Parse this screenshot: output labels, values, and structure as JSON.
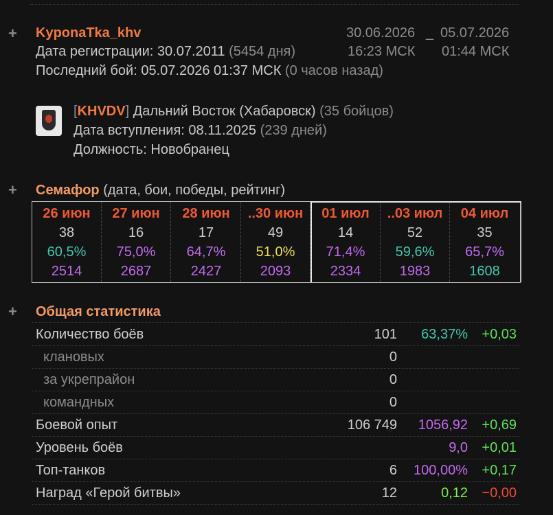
{
  "profile": {
    "nickname": "KyponaTka_khv",
    "registration_label": "Дата регистрации:",
    "registration_date": "30.07.2011",
    "registration_ago": "(5454 дня)",
    "last_battle_label": "Последний бой:",
    "last_battle_date": "05.07.2026 01:37 МСК",
    "last_battle_ago": "(0 часов назад)",
    "period_from": "30.06.2026",
    "period_sep": "_",
    "period_to": "05.07.2026",
    "time_from": "16:23 МСК",
    "time_to": "01:44 МСК"
  },
  "clan": {
    "emblem_icon": "clan-emblem-icon",
    "bracket_open": "[",
    "tag": "KHVDV",
    "bracket_close": "]",
    "name": "Дальний Восток (Хабаровск)",
    "members": "(35 бойцов)",
    "join_label": "Дата вступления:",
    "join_date": "08.11.2025",
    "join_ago": "(239 дней)",
    "position_label": "Должность:",
    "position": "Новобранец"
  },
  "semafor": {
    "title": "Семафор",
    "subtitle": "(дата, бои, победы, рейтинг)",
    "columns": [
      {
        "date": "26 июн",
        "battles": "38",
        "winrate": "60,5%",
        "winrate_color": "#3fc8ae",
        "rating": "2514",
        "rating_color": "#c36af0"
      },
      {
        "date": "27 июн",
        "battles": "16",
        "winrate": "75,0%",
        "winrate_color": "#c36af0",
        "rating": "2687",
        "rating_color": "#c36af0"
      },
      {
        "date": "28 июн",
        "battles": "17",
        "winrate": "64,7%",
        "winrate_color": "#c36af0",
        "rating": "2427",
        "rating_color": "#c36af0"
      },
      {
        "date": "..30 июн",
        "battles": "49",
        "winrate": "51,0%",
        "winrate_color": "#e8e045",
        "rating": "2093",
        "rating_color": "#c36af0"
      },
      {
        "date": "01 июл",
        "battles": "14",
        "winrate": "71,4%",
        "winrate_color": "#c36af0",
        "rating": "2334",
        "rating_color": "#c36af0"
      },
      {
        "date": "..03 июл",
        "battles": "52",
        "winrate": "59,6%",
        "winrate_color": "#3fc8ae",
        "rating": "1983",
        "rating_color": "#c36af0"
      },
      {
        "date": "04 июл",
        "battles": "35",
        "winrate": "65,7%",
        "winrate_color": "#c36af0",
        "rating": "1608",
        "rating_color": "#3fc8ae"
      }
    ]
  },
  "general": {
    "title": "Общая статистика",
    "rows": [
      {
        "label": "Количество боёв",
        "sub": false,
        "v1": "101",
        "v2": "63,37%",
        "v2_color": "#3fc8ae",
        "v3": "+0,03",
        "v3_color": "#5ee05a"
      },
      {
        "label": "клановых",
        "sub": true,
        "v1": "0",
        "v2": "",
        "v2_color": "",
        "v3": "",
        "v3_color": ""
      },
      {
        "label": "за укрепрайон",
        "sub": true,
        "v1": "0",
        "v2": "",
        "v2_color": "",
        "v3": "",
        "v3_color": ""
      },
      {
        "label": "командных",
        "sub": true,
        "v1": "0",
        "v2": "",
        "v2_color": "",
        "v3": "",
        "v3_color": ""
      },
      {
        "label": "Боевой опыт",
        "sub": false,
        "v1": "106 749",
        "v2": "1056,92",
        "v2_color": "#c36af0",
        "v3": "+0,69",
        "v3_color": "#5ee05a"
      },
      {
        "label": "Уровень боёв",
        "sub": false,
        "v1": "",
        "v2": "9,0",
        "v2_color": "#c36af0",
        "v3": "+0,01",
        "v3_color": "#5ee05a"
      },
      {
        "label": "Топ-танков",
        "sub": false,
        "v1": "6",
        "v2": "100,00%",
        "v2_color": "#c36af0",
        "v3": "+0,17",
        "v3_color": "#5ee05a"
      },
      {
        "label": "Наград «Герой битвы»",
        "sub": false,
        "v1": "12",
        "v2": "0,12",
        "v2_color": "#7cf04a",
        "v3": "−0,00",
        "v3_color": "#f04a3a"
      }
    ]
  },
  "ui": {
    "expand_symbol": "+"
  }
}
